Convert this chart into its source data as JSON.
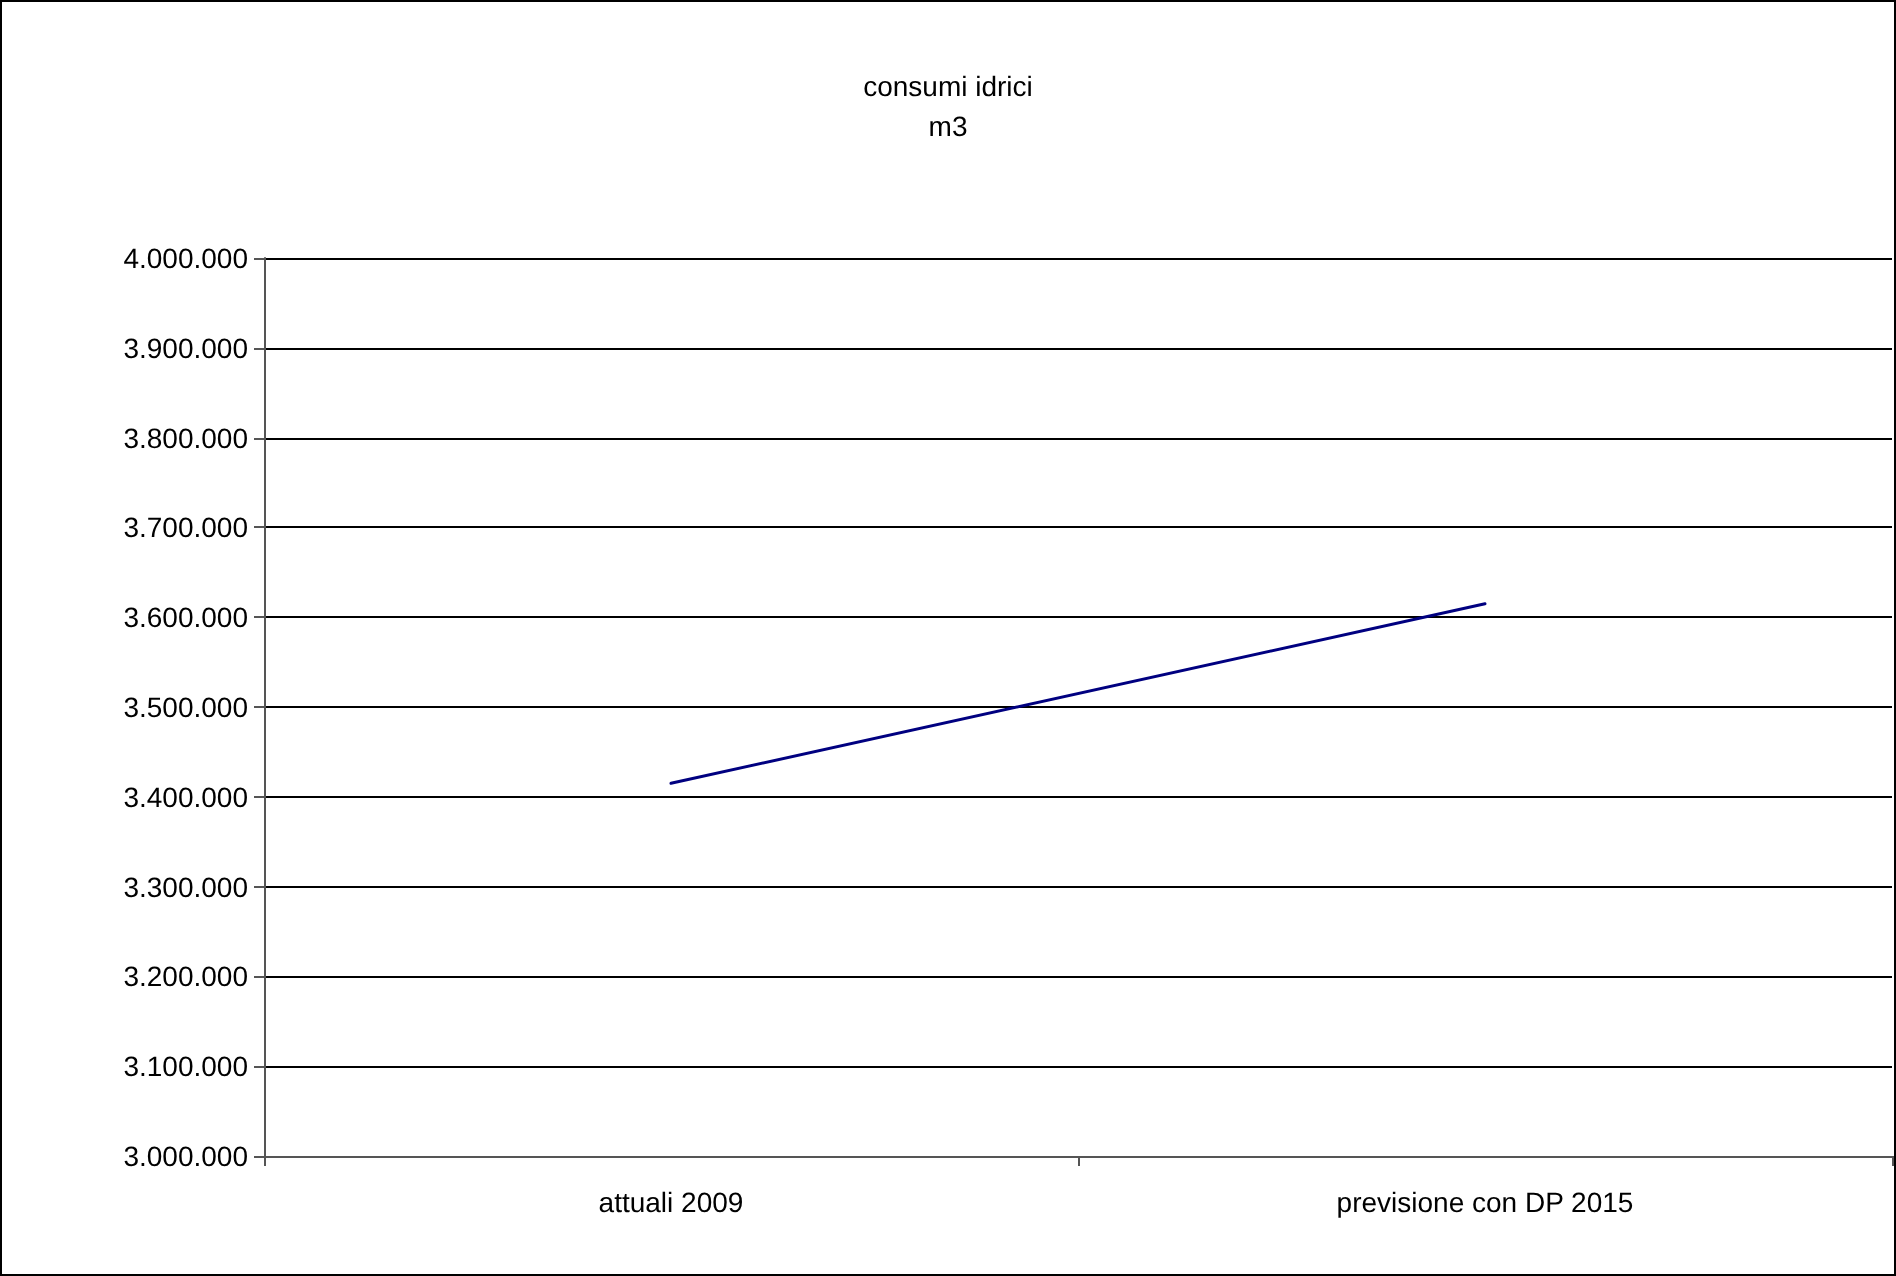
{
  "chart_data": {
    "type": "line",
    "title": "consumi idrici",
    "subtitle": "m3",
    "categories": [
      "attuali 2009",
      "previsione con DP 2015"
    ],
    "series": [
      {
        "color": "#000080",
        "values": [
          3415000,
          3615000
        ]
      }
    ],
    "ylim": [
      3000000,
      4000000
    ],
    "yticks": [
      {
        "value": 3000000,
        "label": "3.000.000"
      },
      {
        "value": 3100000,
        "label": "3.100.000"
      },
      {
        "value": 3200000,
        "label": "3.200.000"
      },
      {
        "value": 3300000,
        "label": "3.300.000"
      },
      {
        "value": 3400000,
        "label": "3.400.000"
      },
      {
        "value": 3500000,
        "label": "3.500.000"
      },
      {
        "value": 3600000,
        "label": "3.600.000"
      },
      {
        "value": 3700000,
        "label": "3.700.000"
      },
      {
        "value": 3800000,
        "label": "3.800.000"
      },
      {
        "value": 3900000,
        "label": "3.900.000"
      },
      {
        "value": 4000000,
        "label": "4.000.000"
      }
    ],
    "grid": "y",
    "marker": "none",
    "line_style": "solid"
  }
}
